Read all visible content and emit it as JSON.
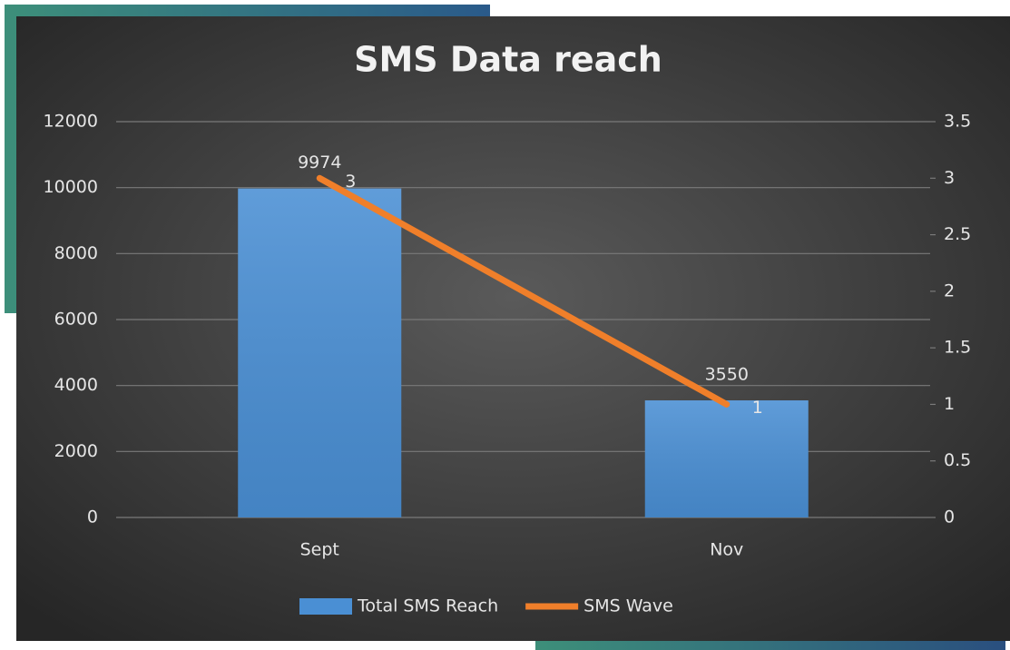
{
  "chart_data": {
    "type": "bar",
    "title": "SMS Data reach",
    "categories": [
      "Sept",
      "Nov"
    ],
    "series": [
      {
        "name": "Total SMS Reach",
        "type": "bar",
        "color": "#4a8fd4",
        "values": [
          9974,
          3550
        ]
      },
      {
        "name": "SMS Wave",
        "type": "line",
        "color": "#f07f2a",
        "axis": "y2",
        "values": [
          3,
          1
        ]
      }
    ],
    "ylim": [
      0,
      12000
    ],
    "yticks": [
      0,
      2000,
      4000,
      6000,
      8000,
      10000,
      12000
    ],
    "y2lim": [
      0,
      3.5
    ],
    "y2ticks": [
      0,
      0.5,
      1,
      1.5,
      2,
      2.5,
      3,
      3.5
    ],
    "grid": true,
    "legend": "bottom"
  }
}
